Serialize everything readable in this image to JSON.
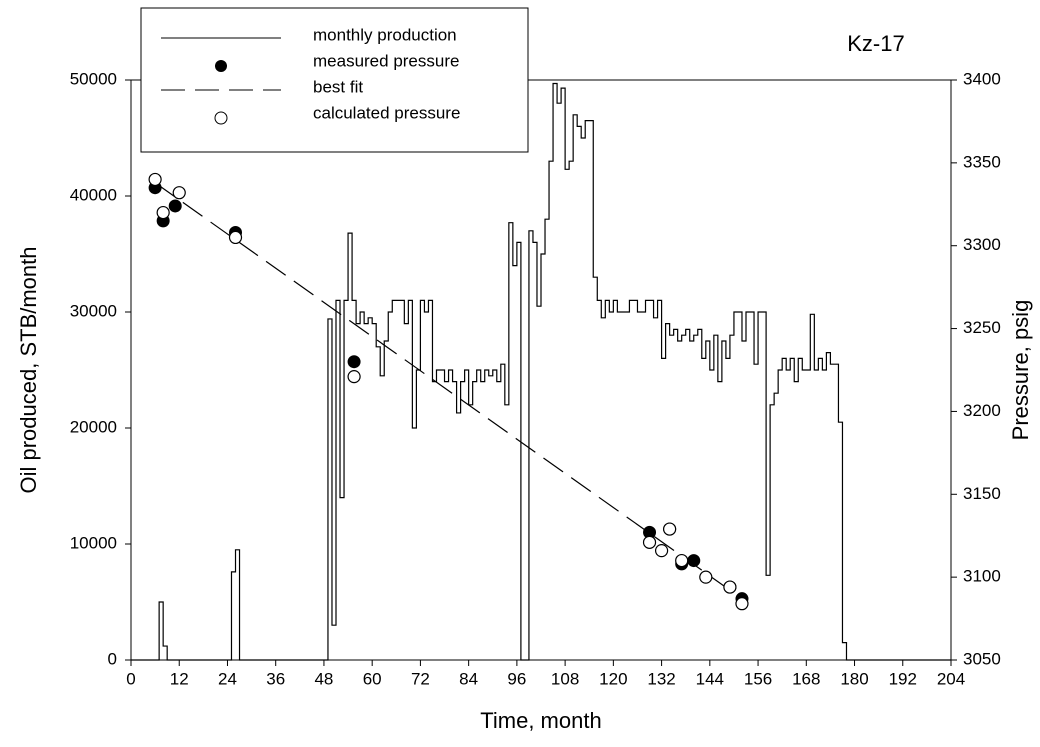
{
  "chart_data": {
    "type": "line",
    "title": "Kz-17",
    "x_label": "Time, month",
    "y_label": "Oil produced, STB/month",
    "y2_label": "Pressure, psig",
    "xlim": [
      0,
      204
    ],
    "xticks": [
      0,
      12,
      24,
      36,
      48,
      60,
      72,
      84,
      96,
      108,
      120,
      132,
      144,
      156,
      168,
      180,
      192,
      204
    ],
    "ylim": [
      0,
      50000
    ],
    "yticks": [
      0,
      10000,
      20000,
      30000,
      40000,
      50000
    ],
    "y2lim": [
      3050,
      3400
    ],
    "y2ticks": [
      3050,
      3100,
      3150,
      3200,
      3250,
      3300,
      3350,
      3400
    ],
    "legend": "upper left",
    "series": [
      {
        "name": "monthly production",
        "color": "#000000",
        "style": "step",
        "x": [
          0,
          7,
          8,
          9,
          25,
          26,
          27,
          49,
          50,
          51,
          52,
          53,
          54,
          55,
          56,
          57,
          58,
          59,
          60,
          61,
          62,
          63,
          64,
          65,
          68,
          69,
          70,
          71,
          72,
          73,
          74,
          75,
          76,
          78,
          79,
          80,
          81,
          82,
          83,
          84,
          85,
          86,
          87,
          88,
          89,
          90,
          91,
          92,
          93,
          94,
          95,
          96,
          97,
          99,
          100,
          101,
          102,
          103,
          104,
          105,
          106,
          107,
          108,
          109,
          110,
          111,
          112,
          113,
          115,
          116,
          117,
          118,
          119,
          120,
          121,
          122,
          124,
          126,
          128,
          130,
          131,
          132,
          133,
          134,
          135,
          136,
          137,
          138,
          139,
          140,
          141,
          142,
          143,
          144,
          145,
          146,
          147,
          148,
          149,
          150,
          152,
          153,
          155,
          156,
          158,
          159,
          160,
          161,
          162,
          163,
          164,
          165,
          166,
          167,
          169,
          170,
          171,
          172,
          173,
          174,
          176,
          177,
          178,
          204
        ],
        "values": [
          0,
          5000,
          1200,
          0,
          7600,
          9500,
          0,
          29400,
          3000,
          31000,
          14000,
          31000,
          36800,
          31000,
          29000,
          30000,
          29000,
          29500,
          29000,
          27000,
          24500,
          27500,
          30000,
          31000,
          29000,
          31000,
          20000,
          25000,
          31000,
          30000,
          31000,
          24000,
          25000,
          24000,
          25000,
          24000,
          21300,
          24000,
          25000,
          22000,
          24000,
          25000,
          24000,
          25000,
          24500,
          25000,
          24000,
          25500,
          22000,
          37700,
          34000,
          36000,
          0,
          37000,
          36000,
          30500,
          35000,
          38000,
          43000,
          49700,
          48000,
          49300,
          42300,
          43000,
          47000,
          46000,
          45000,
          46500,
          33000,
          31000,
          29500,
          31000,
          30000,
          31000,
          30000,
          30000,
          31000,
          30000,
          31000,
          29500,
          31000,
          26000,
          29000,
          28000,
          28500,
          27500,
          28000,
          28500,
          27500,
          28000,
          28500,
          26000,
          27500,
          25000,
          28000,
          24000,
          27500,
          26000,
          28000,
          30000,
          27500,
          30000,
          25500,
          30000,
          7300,
          22000,
          23000,
          25000,
          26000,
          25000,
          26000,
          24000,
          26000,
          25000,
          29800,
          25000,
          26000,
          25000,
          26500,
          25500,
          20500,
          1500,
          0,
          0
        ]
      },
      {
        "name": "measured pressure",
        "color": "#000000",
        "style": "filled-circle",
        "axis": "y2",
        "x": [
          6,
          8,
          11,
          26,
          55.5,
          129,
          134,
          137,
          140,
          149,
          152
        ],
        "values": [
          3335,
          3315,
          3324,
          3308,
          3230,
          3127,
          3129,
          3108,
          3110,
          3094,
          3087
        ]
      },
      {
        "name": "best fit",
        "color": "#000000",
        "style": "dashed",
        "axis": "y2",
        "x": [
          6,
          152
        ],
        "values": [
          3338,
          3087
        ]
      },
      {
        "name": "calculated pressure",
        "color": "#000000",
        "style": "open-circle",
        "axis": "y2",
        "x": [
          6,
          8,
          12,
          26,
          55.5,
          129,
          132,
          134,
          137,
          143,
          149,
          152
        ],
        "values": [
          3340,
          3320,
          3332,
          3305,
          3221,
          3121,
          3116,
          3129,
          3110,
          3100,
          3094,
          3084
        ]
      }
    ]
  }
}
